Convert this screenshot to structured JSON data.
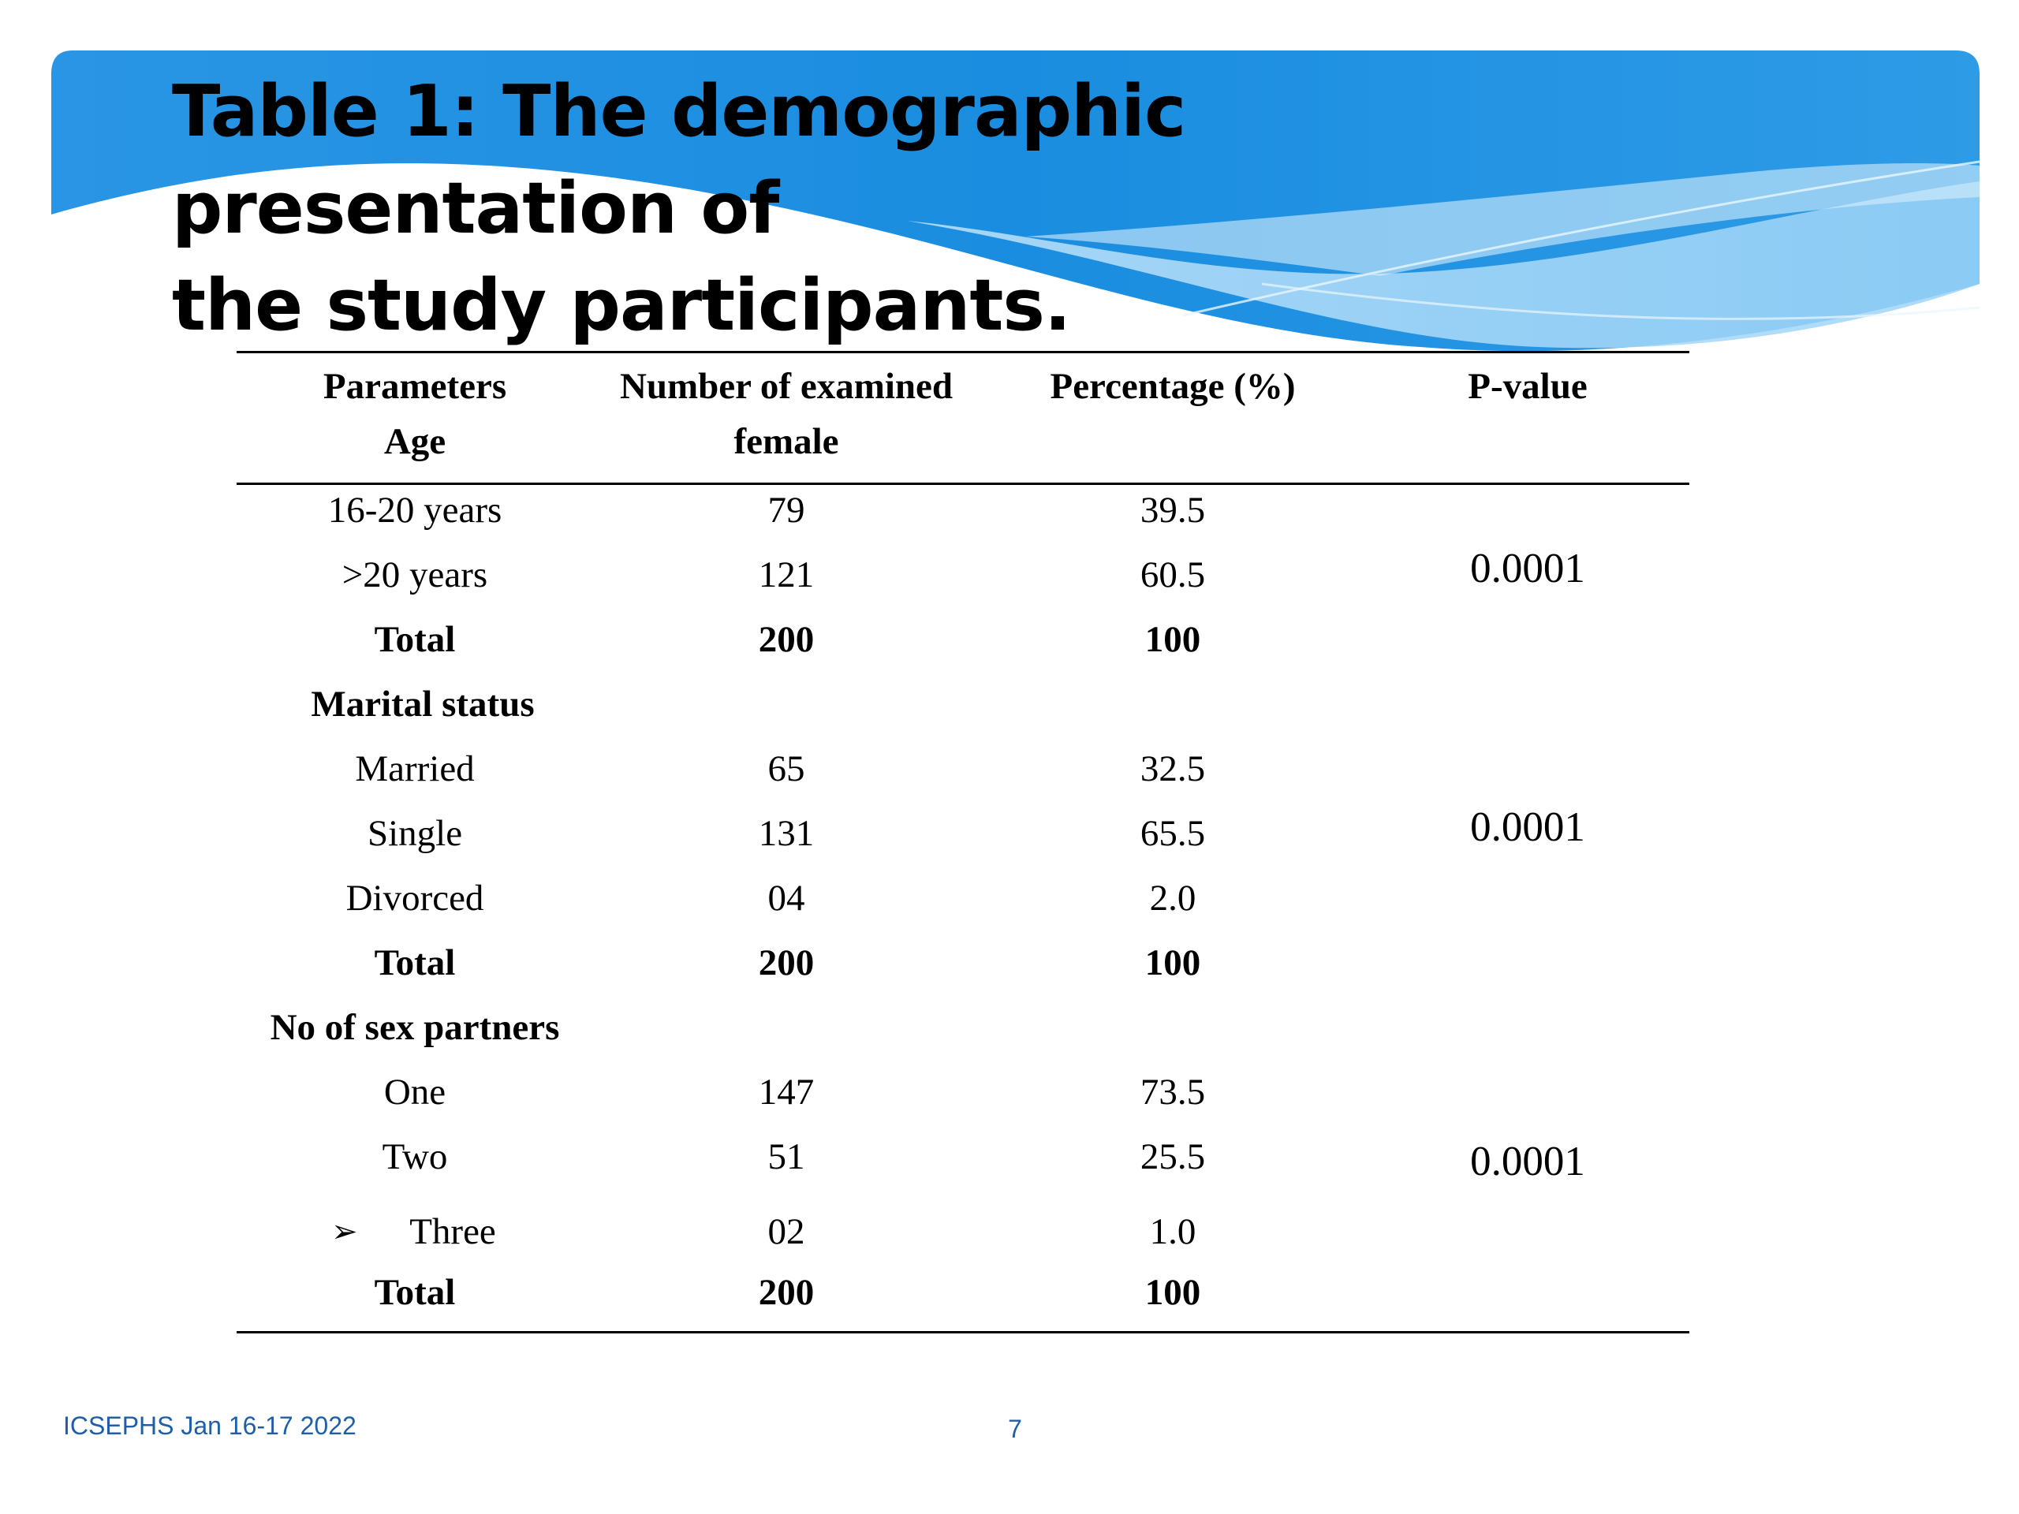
{
  "slide": {
    "title_line1": "Table 1: The demographic presentation of",
    "title_line2": "the study participants.",
    "banner_color": "#1D8FE0",
    "footer_text": "ICSEPHS Jan 16-17 2022",
    "page_number": "7"
  },
  "table": {
    "headers": {
      "col1_line1": "Parameters",
      "col1_line2": "Age",
      "col2_line1": "Number of examined",
      "col2_line2": "female",
      "col3": "Percentage (%)",
      "col4": "P-value"
    },
    "rows": [
      {
        "param": "16-20 years",
        "number": "79",
        "percent": "39.5"
      },
      {
        "param": ">20 years",
        "number": "121",
        "percent": "60.5"
      },
      {
        "param": "Total",
        "number": "200",
        "percent": "100"
      },
      {
        "param": "Marital status",
        "number": "",
        "percent": ""
      },
      {
        "param": "Married",
        "number": "65",
        "percent": "32.5"
      },
      {
        "param": "Single",
        "number": "131",
        "percent": "65.5"
      },
      {
        "param": "Divorced",
        "number": "04",
        "percent": "2.0"
      },
      {
        "param": "Total",
        "number": "200",
        "percent": "100"
      },
      {
        "param": "No of sex partners",
        "number": "",
        "percent": ""
      },
      {
        "param": "One",
        "number": "147",
        "percent": "73.5"
      },
      {
        "param": "Two",
        "number": "51",
        "percent": "25.5"
      },
      {
        "param": "Three",
        "number": "02",
        "percent": "1.0"
      },
      {
        "param": "Total",
        "number": "200",
        "percent": "100"
      }
    ],
    "p_values": [
      "0.0001",
      "0.0001",
      "0.0001"
    ],
    "bullet_icon": "arrow-bullet-icon"
  }
}
